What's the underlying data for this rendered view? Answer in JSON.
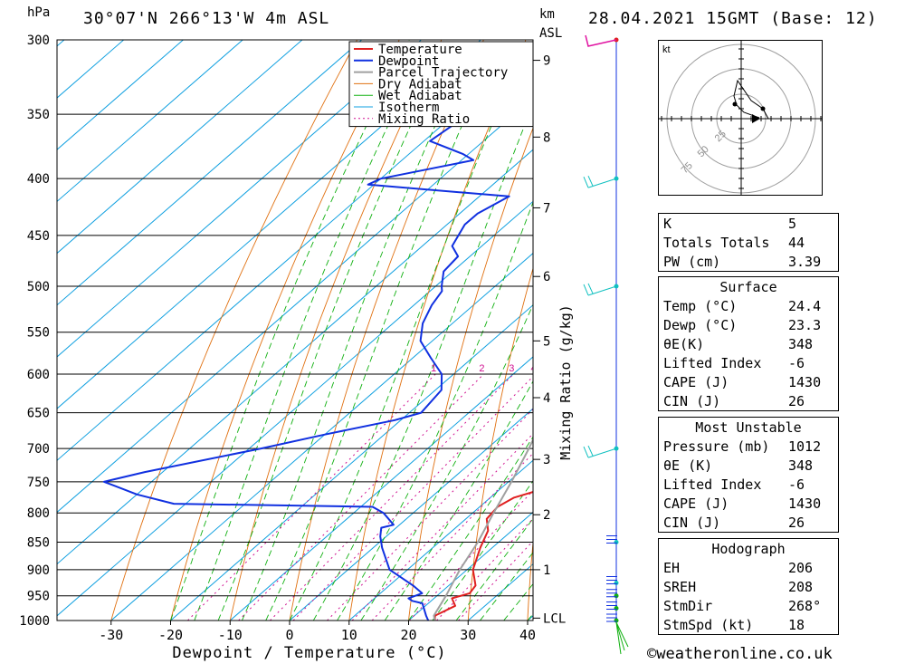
{
  "header": {
    "location": "30°07'N  266°13'W  4m  ASL",
    "datetime": "28.04.2021  15GMT  (Base: 12)",
    "unit_pressure": "hPa",
    "unit_height_1": "km",
    "unit_height_2": "ASL"
  },
  "footer": {
    "site": "©weatheronline.co.uk"
  },
  "colors": {
    "temperature": "#e02020",
    "dewpoint": "#1030e0",
    "parcel": "#a0a0a0",
    "dry_adiabat": "#e07010",
    "wet_adiabat": "#10b010",
    "isotherm": "#10a0e0",
    "mixing_ratio": "#d01090",
    "wind_barbs": "#10c0c0"
  },
  "chart_data": {
    "type": "line",
    "xlabel": "Dewpoint / Temperature (°C)",
    "ylabel": "hPa",
    "ylabel_right": "Mixing Ratio (g/kg)",
    "xlim": [
      -40,
      40
    ],
    "ylim": [
      1000,
      300
    ],
    "x_ticks": [
      "-30",
      "-20",
      "-10",
      "0",
      "10",
      "20",
      "30",
      "40"
    ],
    "pressure_levels": [
      "300",
      "350",
      "400",
      "450",
      "500",
      "550",
      "600",
      "650",
      "700",
      "750",
      "800",
      "850",
      "900",
      "950",
      "1000"
    ],
    "height_ticks": [
      {
        "label": "9",
        "p": 313
      },
      {
        "label": "8",
        "p": 367
      },
      {
        "label": "7",
        "p": 425
      },
      {
        "label": "6",
        "p": 490
      },
      {
        "label": "5",
        "p": 560
      },
      {
        "label": "4",
        "p": 630
      },
      {
        "label": "3",
        "p": 716
      },
      {
        "label": "2",
        "p": 803
      },
      {
        "label": "1",
        "p": 900
      },
      {
        "label": "LCL",
        "p": 995
      }
    ],
    "mixing_ratio_labels": [
      "1",
      "2",
      "3",
      "4",
      "6",
      "8",
      "10",
      "15",
      "20",
      "25"
    ],
    "legend": [
      "Temperature",
      "Dewpoint",
      "Parcel Trajectory",
      "Dry Adiabat",
      "Wet Adiabat",
      "Isotherm",
      "Mixing Ratio"
    ],
    "series": [
      {
        "name": "Temperature",
        "points": [
          [
            1000,
            24.4
          ],
          [
            990,
            23.5
          ],
          [
            970,
            25
          ],
          [
            955,
            23
          ],
          [
            945,
            25
          ],
          [
            930,
            24.5
          ],
          [
            900,
            21
          ],
          [
            860,
            18
          ],
          [
            830,
            16
          ],
          [
            810,
            13.5
          ],
          [
            790,
            13
          ],
          [
            775,
            14
          ],
          [
            760,
            17.5
          ],
          [
            750,
            18
          ],
          [
            720,
            16
          ],
          [
            700,
            14
          ],
          [
            680,
            12.5
          ],
          [
            660,
            11
          ],
          [
            640,
            8
          ],
          [
            620,
            6
          ],
          [
            600,
            3.5
          ],
          [
            580,
            2.5
          ],
          [
            560,
            0.5
          ],
          [
            540,
            -1.5
          ],
          [
            520,
            -4
          ],
          [
            500,
            -6.5
          ],
          [
            490,
            -8
          ],
          [
            480,
            -8
          ],
          [
            470,
            -8
          ],
          [
            460,
            -9
          ],
          [
            440,
            -12
          ],
          [
            420,
            -15
          ],
          [
            410,
            -17
          ],
          [
            400,
            -19.5
          ],
          [
            380,
            -23
          ],
          [
            360,
            -26.5
          ],
          [
            350,
            -29
          ],
          [
            330,
            -33
          ],
          [
            310,
            -37.5
          ],
          [
            300,
            -40.5
          ]
        ]
      },
      {
        "name": "Dewpoint",
        "points": [
          [
            1000,
            23.3
          ],
          [
            990,
            22
          ],
          [
            965,
            19
          ],
          [
            960,
            16.8
          ],
          [
            955,
            15.7
          ],
          [
            945,
            17
          ],
          [
            930,
            14
          ],
          [
            900,
            7
          ],
          [
            860,
            1.5
          ],
          [
            840,
            -1
          ],
          [
            825,
            -2.5
          ],
          [
            820,
            -1
          ],
          [
            800,
            -5
          ],
          [
            790,
            -8
          ],
          [
            785,
            -42
          ],
          [
            770,
            -50
          ],
          [
            750,
            -58
          ],
          [
            735,
            -53
          ],
          [
            700,
            -38
          ],
          [
            680,
            -30
          ],
          [
            660,
            -21
          ],
          [
            650,
            -18
          ],
          [
            620,
            -19
          ],
          [
            600,
            -22
          ],
          [
            580,
            -27
          ],
          [
            560,
            -32
          ],
          [
            540,
            -35
          ],
          [
            520,
            -37
          ],
          [
            505,
            -38
          ],
          [
            500,
            -39
          ],
          [
            485,
            -41.5
          ],
          [
            470,
            -42
          ],
          [
            460,
            -45
          ],
          [
            440,
            -47
          ],
          [
            430,
            -47
          ],
          [
            415,
            -45
          ],
          [
            405,
            -71
          ],
          [
            400,
            -70
          ],
          [
            385,
            -58
          ],
          [
            380,
            -61
          ],
          [
            370,
            -69
          ],
          [
            355,
            -68
          ],
          [
            340,
            -76
          ],
          [
            330,
            -83
          ],
          [
            310,
            -66
          ],
          [
            303,
            -63
          ],
          [
            300,
            -64
          ]
        ]
      },
      {
        "name": "Parcel Trajectory",
        "points": [
          [
            1000,
            24.4
          ],
          [
            990,
            23.3
          ],
          [
            950,
            21.5
          ],
          [
            900,
            18.8
          ],
          [
            850,
            16.5
          ],
          [
            800,
            13.5
          ],
          [
            750,
            10.5
          ],
          [
            700,
            7
          ],
          [
            650,
            3
          ],
          [
            600,
            -1.5
          ],
          [
            550,
            -6.5
          ],
          [
            500,
            -13
          ],
          [
            450,
            -20
          ],
          [
            400,
            -28.5
          ],
          [
            370,
            -34
          ]
        ]
      }
    ],
    "wind": {
      "type": "barbs",
      "levels_hpa": [
        300,
        400,
        500,
        700,
        850,
        925,
        950,
        975,
        1000
      ]
    },
    "hodograph": {
      "unit": "kt",
      "ring_labels": [
        "25",
        "50",
        "75"
      ]
    }
  },
  "tables": {
    "indices": [
      {
        "label": "K",
        "value": "5"
      },
      {
        "label": "Totals Totals",
        "value": "44"
      },
      {
        "label": "PW (cm)",
        "value": "3.39"
      }
    ],
    "surface": {
      "title": "Surface",
      "rows": [
        {
          "label": "Temp (°C)",
          "value": "24.4"
        },
        {
          "label": "Dewp (°C)",
          "value": "23.3"
        },
        {
          "label": "θE(K)",
          "value": "348"
        },
        {
          "label": "Lifted Index",
          "value": "-6"
        },
        {
          "label": "CAPE (J)",
          "value": "1430"
        },
        {
          "label": "CIN (J)",
          "value": "26"
        }
      ]
    },
    "most_unstable": {
      "title": "Most Unstable",
      "rows": [
        {
          "label": "Pressure (mb)",
          "value": "1012"
        },
        {
          "label": "θE (K)",
          "value": "348"
        },
        {
          "label": "Lifted Index",
          "value": "-6"
        },
        {
          "label": "CAPE (J)",
          "value": "1430"
        },
        {
          "label": "CIN (J)",
          "value": "26"
        }
      ]
    },
    "hodograph": {
      "title": "Hodograph",
      "rows": [
        {
          "label": "EH",
          "value": "206"
        },
        {
          "label": "SREH",
          "value": "208"
        },
        {
          "label": "StmDir",
          "value": "268°"
        },
        {
          "label": "StmSpd (kt)",
          "value": "18"
        }
      ]
    }
  }
}
